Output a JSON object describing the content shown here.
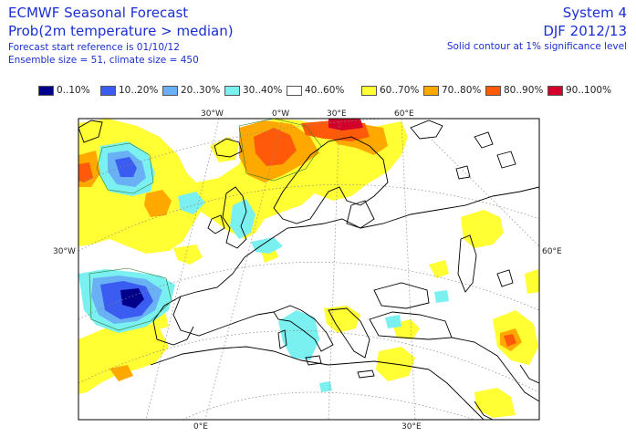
{
  "header": {
    "title": "ECMWF Seasonal Forecast",
    "subtitle": "Prob(2m temperature > median)",
    "start_ref": "Forecast start reference is 01/10/12",
    "ensemble": "Ensemble size = 51, climate size = 450",
    "system": "System 4",
    "season": "DJF 2012/13",
    "contour_note": "Solid contour at 1% significance level"
  },
  "legend": [
    {
      "label": "0..10%",
      "color": "#00008b"
    },
    {
      "label": "10..20%",
      "color": "#3a5cf0"
    },
    {
      "label": "20..30%",
      "color": "#6ab0f5"
    },
    {
      "label": "30..40%",
      "color": "#7af0f0"
    },
    {
      "label": "40..60%",
      "color": "#ffffff"
    },
    {
      "label": "60..70%",
      "color": "#ffff33"
    },
    {
      "label": "70..80%",
      "color": "#ffa800"
    },
    {
      "label": "80..90%",
      "color": "#ff5a0a"
    },
    {
      "label": "90..100%",
      "color": "#d2002a"
    }
  ],
  "map_labels": {
    "lon_top": [
      "30°W",
      "0°W",
      "30°E",
      "60°E"
    ],
    "lat_left": "30°W",
    "lat_right": "60°E",
    "lon_bottom": [
      "0°E",
      "30°E"
    ]
  },
  "colors": {
    "land": "#ffffff",
    "coast": "#000000",
    "grid": "#888888",
    "text": "#1a2fd1"
  }
}
